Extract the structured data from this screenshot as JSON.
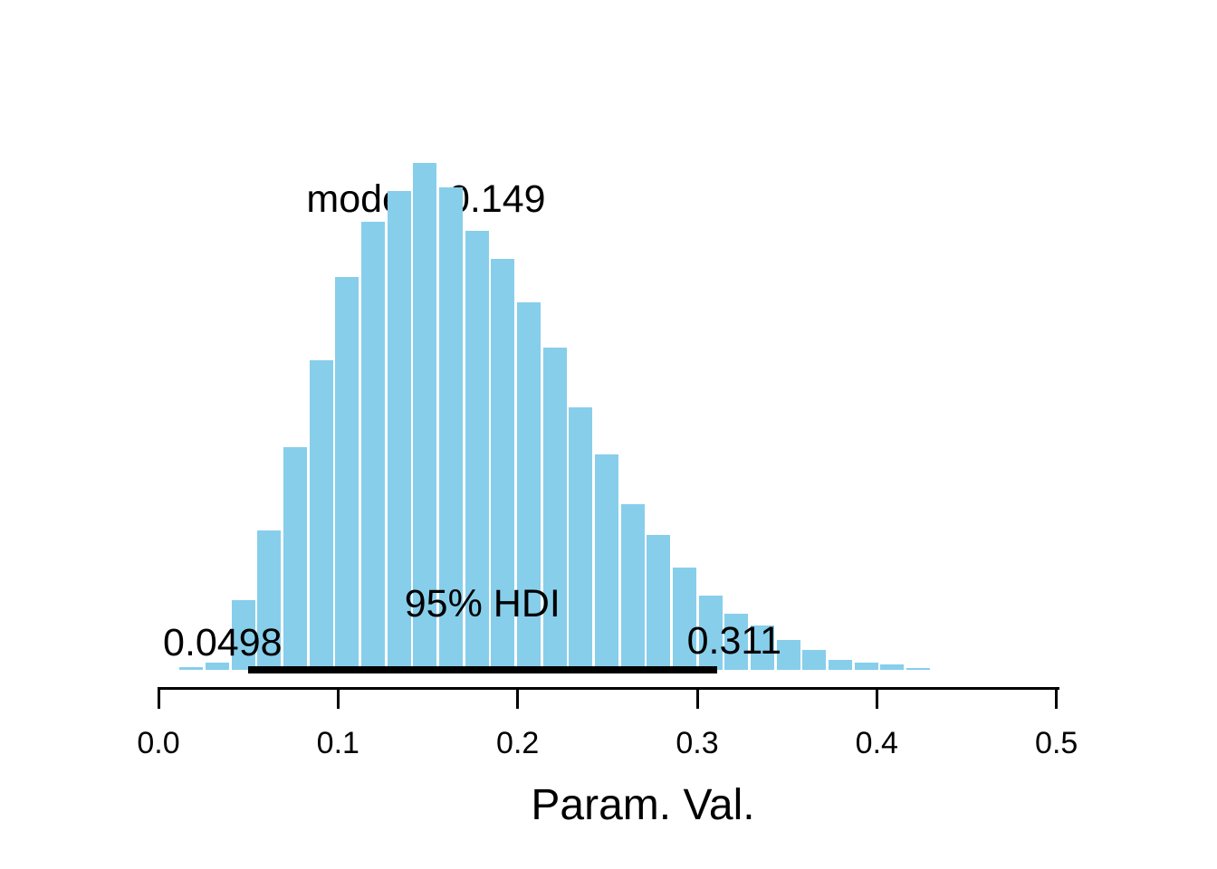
{
  "chart_data": {
    "type": "bar",
    "subtype": "histogram",
    "title": "",
    "xlabel": "Param. Val.",
    "ylabel": "",
    "xlim": [
      0.0,
      0.5
    ],
    "grid": false,
    "legend": "none",
    "x_tick_values": [
      0.0,
      0.1,
      0.2,
      0.3,
      0.4,
      0.5
    ],
    "x_tick_labels": [
      "0.0",
      "0.1",
      "0.2",
      "0.3",
      "0.4",
      "0.5"
    ],
    "bin_width": 0.0145,
    "bin_starts": [
      0.0118,
      0.0262,
      0.0407,
      0.0551,
      0.0696,
      0.084,
      0.0985,
      0.1129,
      0.1274,
      0.1418,
      0.1563,
      0.1707,
      0.1852,
      0.1996,
      0.2141,
      0.2285,
      0.243,
      0.2574,
      0.2719,
      0.2863,
      0.3008,
      0.3152,
      0.3297,
      0.3441,
      0.3586,
      0.373,
      0.3875,
      0.4019,
      0.4164
    ],
    "heights_rel": [
      0.005,
      0.014,
      0.138,
      0.275,
      0.439,
      0.611,
      0.775,
      0.884,
      0.945,
      1.0,
      0.952,
      0.866,
      0.811,
      0.725,
      0.636,
      0.518,
      0.425,
      0.327,
      0.266,
      0.202,
      0.146,
      0.111,
      0.088,
      0.059,
      0.039,
      0.02,
      0.014,
      0.011,
      0.004
    ],
    "bar_color": "#87CEEB",
    "text_color": "#000000",
    "annotations": {
      "mode_label": "mode = 0.149",
      "mode_value": 0.149,
      "hdi_label": "95% HDI",
      "hdi_mass": 0.95,
      "hdi_low": 0.0498,
      "hdi_high": 0.311,
      "hdi_low_label": "0.0498",
      "hdi_high_label": "0.311"
    }
  }
}
